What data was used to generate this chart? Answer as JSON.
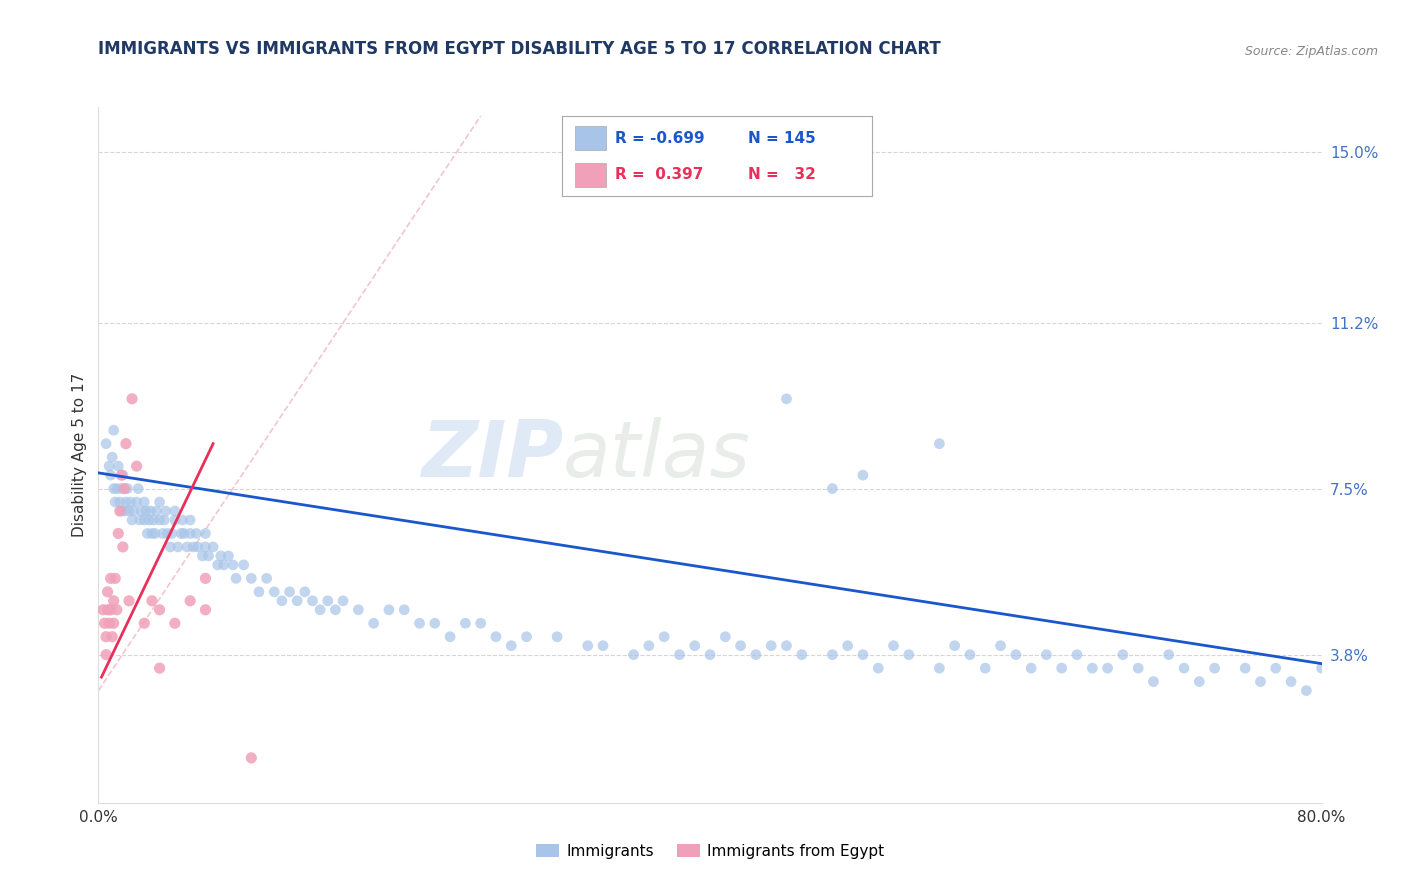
{
  "title": "IMMIGRANTS VS IMMIGRANTS FROM EGYPT DISABILITY AGE 5 TO 17 CORRELATION CHART",
  "source": "Source: ZipAtlas.com",
  "ylabel": "Disability Age 5 to 17",
  "r_blue": -0.699,
  "n_blue": 145,
  "r_pink": 0.397,
  "n_pink": 32,
  "blue_color": "#A8C4E8",
  "pink_color": "#F0A0B8",
  "trend_blue": "#1A56CC",
  "trend_pink": "#E8305A",
  "diag_color": "#F0C0C8",
  "xmin": 0.0,
  "xmax": 80.0,
  "ymin": 0.5,
  "ymax": 16.0,
  "yticks": [
    3.8,
    7.5,
    11.2,
    15.0
  ],
  "watermark_zip": "ZIP",
  "watermark_atlas": "atlas",
  "title_fontsize": 12,
  "axis_fontsize": 11,
  "blue_trend_x0": 0.0,
  "blue_trend_y0": 7.85,
  "blue_trend_x1": 80.0,
  "blue_trend_y1": 3.6,
  "pink_trend_x0": 0.2,
  "pink_trend_y0": 3.3,
  "pink_trend_x1": 7.5,
  "pink_trend_y1": 8.5,
  "diag_x0": 0.0,
  "diag_y0": 3.0,
  "diag_x1": 25.0,
  "diag_y1": 15.8,
  "blue_pts_x": [
    0.5,
    0.7,
    0.8,
    0.9,
    1.0,
    1.0,
    1.1,
    1.2,
    1.3,
    1.4,
    1.5,
    1.5,
    1.6,
    1.7,
    1.8,
    1.9,
    2.0,
    2.1,
    2.2,
    2.3,
    2.5,
    2.6,
    2.7,
    2.8,
    3.0,
    3.0,
    3.1,
    3.2,
    3.3,
    3.4,
    3.5,
    3.6,
    3.7,
    3.8,
    4.0,
    4.0,
    4.2,
    4.3,
    4.4,
    4.5,
    4.7,
    4.8,
    5.0,
    5.0,
    5.2,
    5.4,
    5.5,
    5.6,
    5.8,
    6.0,
    6.0,
    6.2,
    6.4,
    6.5,
    6.8,
    7.0,
    7.0,
    7.2,
    7.5,
    7.8,
    8.0,
    8.2,
    8.5,
    8.8,
    9.0,
    9.5,
    10.0,
    10.5,
    11.0,
    11.5,
    12.0,
    12.5,
    13.0,
    13.5,
    14.0,
    14.5,
    15.0,
    15.5,
    16.0,
    17.0,
    18.0,
    19.0,
    20.0,
    21.0,
    22.0,
    23.0,
    24.0,
    25.0,
    26.0,
    27.0,
    28.0,
    30.0,
    32.0,
    33.0,
    35.0,
    36.0,
    37.0,
    38.0,
    39.0,
    40.0,
    41.0,
    42.0,
    43.0,
    44.0,
    45.0,
    46.0,
    48.0,
    49.0,
    50.0,
    51.0,
    52.0,
    53.0,
    55.0,
    56.0,
    57.0,
    58.0,
    59.0,
    60.0,
    61.0,
    62.0,
    63.0,
    64.0,
    65.0,
    66.0,
    67.0,
    68.0,
    69.0,
    70.0,
    71.0,
    72.0,
    73.0,
    75.0,
    76.0,
    77.0,
    78.0,
    79.0,
    80.0,
    50.0,
    55.0,
    45.0,
    48.0
  ],
  "blue_pts_y": [
    8.5,
    8.0,
    7.8,
    8.2,
    7.5,
    8.8,
    7.2,
    7.5,
    8.0,
    7.2,
    7.0,
    7.5,
    7.8,
    7.0,
    7.2,
    7.5,
    7.0,
    7.2,
    6.8,
    7.0,
    7.2,
    7.5,
    6.8,
    7.0,
    6.8,
    7.2,
    7.0,
    6.5,
    6.8,
    7.0,
    6.5,
    6.8,
    6.5,
    7.0,
    6.8,
    7.2,
    6.5,
    6.8,
    7.0,
    6.5,
    6.2,
    6.5,
    6.8,
    7.0,
    6.2,
    6.5,
    6.8,
    6.5,
    6.2,
    6.5,
    6.8,
    6.2,
    6.5,
    6.2,
    6.0,
    6.2,
    6.5,
    6.0,
    6.2,
    5.8,
    6.0,
    5.8,
    6.0,
    5.8,
    5.5,
    5.8,
    5.5,
    5.2,
    5.5,
    5.2,
    5.0,
    5.2,
    5.0,
    5.2,
    5.0,
    4.8,
    5.0,
    4.8,
    5.0,
    4.8,
    4.5,
    4.8,
    4.8,
    4.5,
    4.5,
    4.2,
    4.5,
    4.5,
    4.2,
    4.0,
    4.2,
    4.2,
    4.0,
    4.0,
    3.8,
    4.0,
    4.2,
    3.8,
    4.0,
    3.8,
    4.2,
    4.0,
    3.8,
    4.0,
    4.0,
    3.8,
    3.8,
    4.0,
    3.8,
    3.5,
    4.0,
    3.8,
    3.5,
    4.0,
    3.8,
    3.5,
    4.0,
    3.8,
    3.5,
    3.8,
    3.5,
    3.8,
    3.5,
    3.5,
    3.8,
    3.5,
    3.2,
    3.8,
    3.5,
    3.2,
    3.5,
    3.5,
    3.2,
    3.5,
    3.2,
    3.0,
    3.5,
    7.8,
    8.5,
    9.5,
    7.5
  ],
  "pink_pts_x": [
    0.3,
    0.4,
    0.5,
    0.5,
    0.6,
    0.6,
    0.7,
    0.8,
    0.8,
    0.9,
    1.0,
    1.0,
    1.1,
    1.2,
    1.3,
    1.4,
    1.5,
    1.6,
    1.7,
    1.8,
    2.0,
    2.2,
    2.5,
    3.0,
    3.5,
    4.0,
    5.0,
    6.0,
    7.0,
    7.0,
    4.0,
    10.0
  ],
  "pink_pts_y": [
    4.8,
    4.5,
    4.2,
    3.8,
    5.2,
    4.8,
    4.5,
    4.8,
    5.5,
    4.2,
    4.5,
    5.0,
    5.5,
    4.8,
    6.5,
    7.0,
    7.8,
    6.2,
    7.5,
    8.5,
    5.0,
    9.5,
    8.0,
    4.5,
    5.0,
    4.8,
    4.5,
    5.0,
    4.8,
    5.5,
    3.5,
    1.5
  ]
}
